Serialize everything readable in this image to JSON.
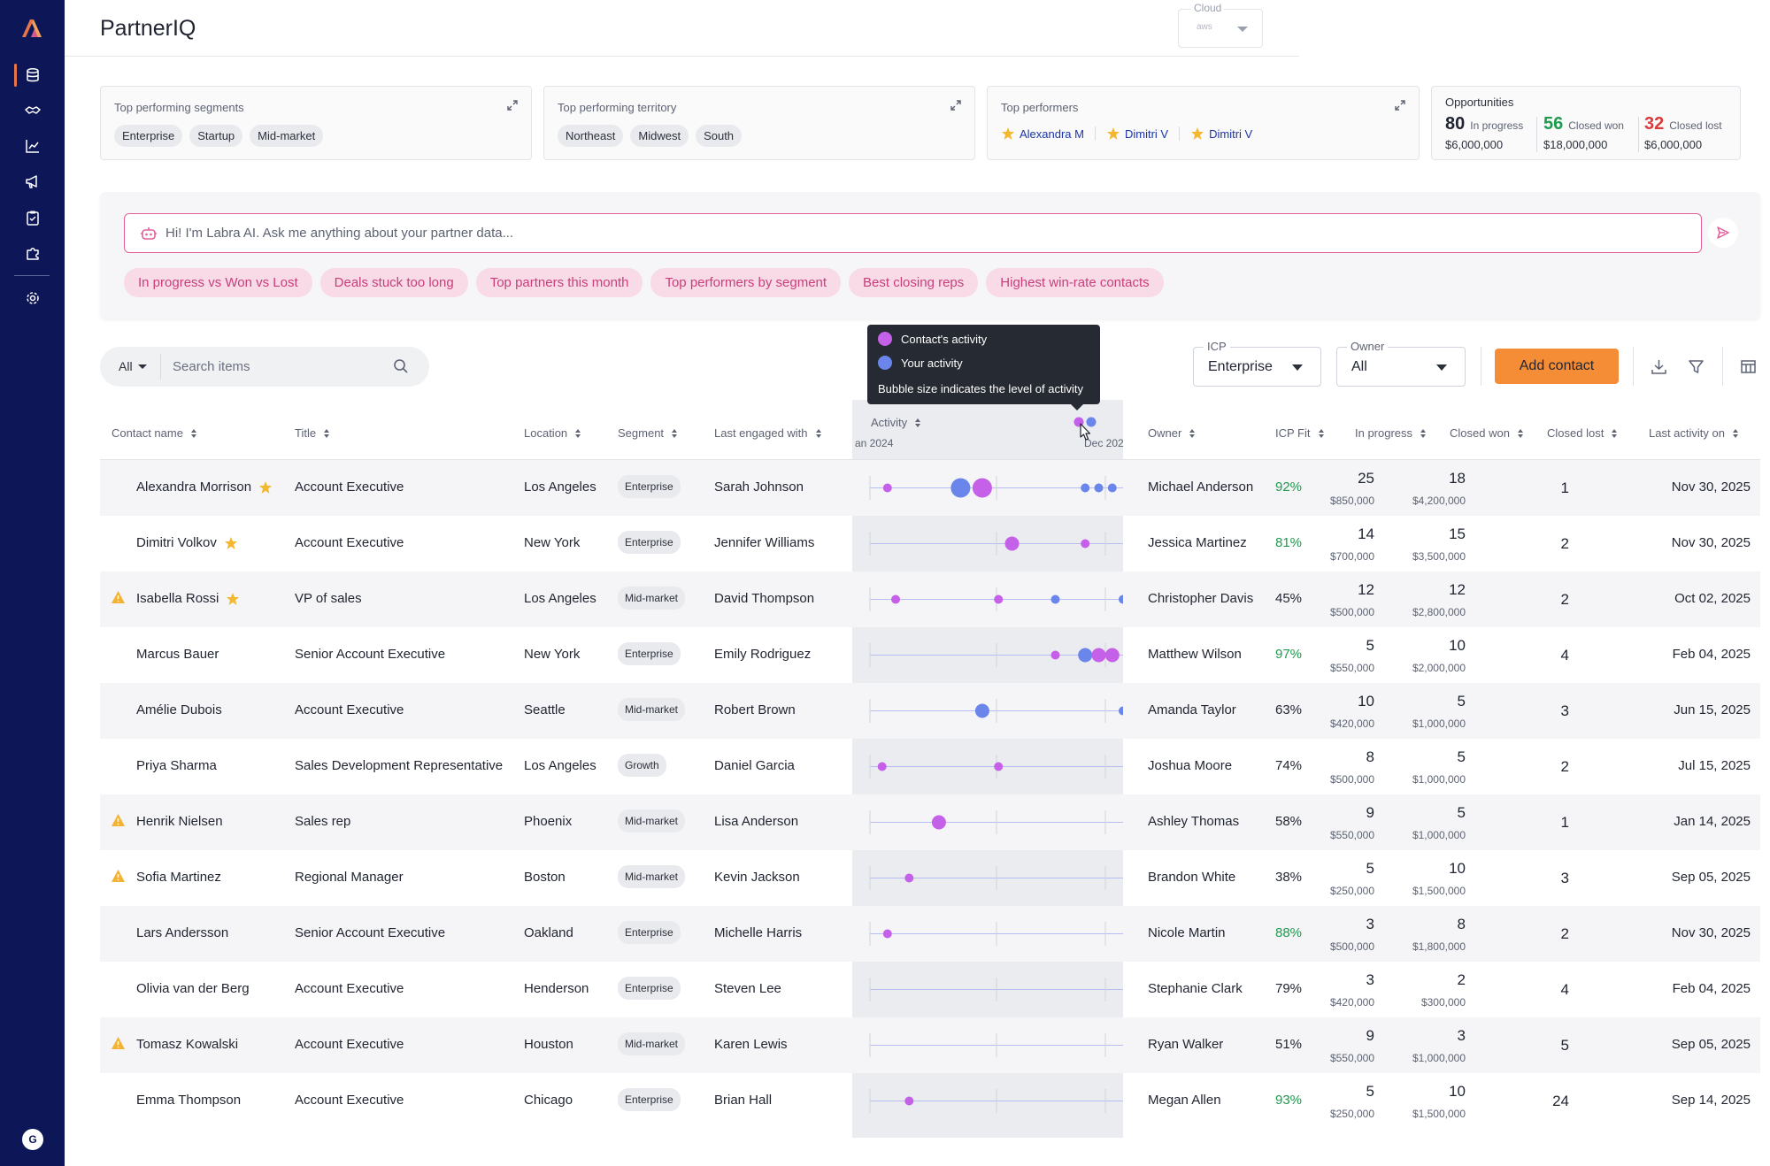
{
  "app": {
    "title": "PartnerIQ"
  },
  "sidebar": {
    "items": [
      {
        "name": "records",
        "icon": "database-icon",
        "active": true
      },
      {
        "name": "partners",
        "icon": "handshake-icon"
      },
      {
        "name": "analytics",
        "icon": "chart-line-icon"
      },
      {
        "name": "campaigns",
        "icon": "megaphone-icon"
      },
      {
        "name": "tasks",
        "icon": "clipboard-icon"
      },
      {
        "name": "integrations",
        "icon": "puzzle-icon"
      },
      {
        "name": "settings",
        "icon": "gear-icon"
      }
    ],
    "avatar_initial": "G"
  },
  "cloud": {
    "label": "Cloud",
    "value": "aws"
  },
  "cards": {
    "segments": {
      "title": "Top performing segments",
      "chips": [
        "Enterprise",
        "Startup",
        "Mid-market"
      ]
    },
    "territory": {
      "title": "Top performing territory",
      "chips": [
        "Northeast",
        "Midwest",
        "South"
      ]
    },
    "performers": {
      "title": "Top performers",
      "names": [
        "Alexandra M",
        "Dimitri V",
        "Dimitri V"
      ]
    },
    "opportunities": {
      "title": "Opportunities",
      "in_progress": {
        "count": "80",
        "label": "In progress",
        "amount": "$6,000,000"
      },
      "closed_won": {
        "count": "56",
        "label": "Closed won",
        "amount": "$18,000,000"
      },
      "closed_lost": {
        "count": "32",
        "label": "Closed lost",
        "amount": "$6,000,000"
      }
    }
  },
  "ai": {
    "placeholder": "Hi! I'm Labra AI. Ask me anything about your partner data...",
    "suggestions": [
      "In progress vs Won vs Lost",
      "Deals stuck too long",
      "Top partners this month",
      "Top performers by segment",
      "Best closing reps",
      "Highest win-rate contacts"
    ]
  },
  "toolbar": {
    "filter_value": "All",
    "search_placeholder": "Search items",
    "icp": {
      "label": "ICP",
      "value": "Enterprise"
    },
    "owner": {
      "label": "Owner",
      "value": "All"
    },
    "add_button": "Add contact"
  },
  "tooltip": {
    "contact_activity": "Contact's activity",
    "your_activity": "Your activity",
    "note": "Bubble size indicates the level of activity"
  },
  "colors": {
    "contact": "#c560e8",
    "yours": "#6a86ea",
    "accent": "#f58c36",
    "brand": "#0d1757"
  },
  "table": {
    "columns": {
      "name": "Contact name",
      "title": "Title",
      "location": "Location",
      "segment": "Segment",
      "engaged": "Last engaged with",
      "activity": "Activity",
      "owner": "Owner",
      "icp_fit": "ICP Fit",
      "in_progress": "In progress",
      "closed_won": "Closed won",
      "closed_lost": "Closed lost",
      "last_activity": "Last activity on"
    },
    "activity_axis": {
      "start": "an 2024",
      "end": "Dec 202"
    },
    "rows": [
      {
        "name": "Alexandra Morrison",
        "star": true,
        "warn": false,
        "title": "Account Executive",
        "location": "Los Angeles",
        "segment": "Enterprise",
        "engaged": "Sarah Johnson",
        "owner": "Michael Anderson",
        "icp": "92%",
        "icp_good": true,
        "in_progress": "25",
        "in_progress_amt": "$850,000",
        "closed_won": "18",
        "closed_won_amt": "$4,200,000",
        "closed_lost": "1",
        "last_activity": "Nov 30, 2025",
        "bubbles": [
          {
            "t": 0.13,
            "s": 1,
            "k": "c"
          },
          {
            "t": 0.4,
            "s": 3,
            "k": "y"
          },
          {
            "t": 0.48,
            "s": 3,
            "k": "c"
          },
          {
            "t": 0.86,
            "s": 1,
            "k": "y"
          },
          {
            "t": 0.91,
            "s": 1,
            "k": "y"
          },
          {
            "t": 0.96,
            "s": 1,
            "k": "y"
          }
        ]
      },
      {
        "name": "Dimitri Volkov",
        "star": true,
        "warn": false,
        "title": "Account Executive",
        "location": "New York",
        "segment": "Enterprise",
        "engaged": "Jennifer Williams",
        "owner": "Jessica Martinez",
        "icp": "81%",
        "icp_good": true,
        "in_progress": "14",
        "in_progress_amt": "$700,000",
        "closed_won": "15",
        "closed_won_amt": "$3,500,000",
        "closed_lost": "2",
        "last_activity": "Nov 30, 2025",
        "bubbles": [
          {
            "t": 0.59,
            "s": 2,
            "k": "c"
          },
          {
            "t": 0.86,
            "s": 1,
            "k": "c"
          }
        ]
      },
      {
        "name": "Isabella Rossi",
        "star": true,
        "warn": true,
        "title": "VP of sales",
        "location": "Los Angeles",
        "segment": "Mid-market",
        "engaged": "David Thompson",
        "owner": "Christopher Davis",
        "icp": "45%",
        "icp_good": false,
        "in_progress": "12",
        "in_progress_amt": "$500,000",
        "closed_won": "12",
        "closed_won_amt": "$2,800,000",
        "closed_lost": "2",
        "last_activity": "Oct 02, 2025",
        "bubbles": [
          {
            "t": 0.16,
            "s": 1,
            "k": "c"
          },
          {
            "t": 0.54,
            "s": 1,
            "k": "c"
          },
          {
            "t": 0.75,
            "s": 1,
            "k": "y"
          },
          {
            "t": 1.0,
            "s": 1,
            "k": "y"
          }
        ]
      },
      {
        "name": "Marcus Bauer",
        "star": false,
        "warn": false,
        "title": "Senior Account Executive",
        "location": "New York",
        "segment": "Enterprise",
        "engaged": "Emily Rodriguez",
        "owner": "Matthew Wilson",
        "icp": "97%",
        "icp_good": true,
        "in_progress": "5",
        "in_progress_amt": "$550,000",
        "closed_won": "10",
        "closed_won_amt": "$2,000,000",
        "closed_lost": "4",
        "last_activity": "Feb 04, 2025",
        "bubbles": [
          {
            "t": 0.75,
            "s": 1,
            "k": "c"
          },
          {
            "t": 0.86,
            "s": 2,
            "k": "y"
          },
          {
            "t": 0.91,
            "s": 2,
            "k": "c"
          },
          {
            "t": 0.96,
            "s": 2,
            "k": "c"
          }
        ]
      },
      {
        "name": "Amélie Dubois",
        "star": false,
        "warn": false,
        "title": "Account Executive",
        "location": "Seattle",
        "segment": "Mid-market",
        "engaged": "Robert Brown",
        "owner": "Amanda Taylor",
        "icp": "63%",
        "icp_good": false,
        "in_progress": "10",
        "in_progress_amt": "$420,000",
        "closed_won": "5",
        "closed_won_amt": "$1,000,000",
        "closed_lost": "3",
        "last_activity": "Jun 15, 2025",
        "bubbles": [
          {
            "t": 0.48,
            "s": 2,
            "k": "y"
          },
          {
            "t": 1.0,
            "s": 1,
            "k": "y"
          }
        ]
      },
      {
        "name": "Priya Sharma",
        "star": false,
        "warn": false,
        "title": "Sales Development Representative",
        "location": "Los Angeles",
        "segment": "Growth",
        "engaged": "Daniel Garcia",
        "owner": "Joshua Moore",
        "icp": "74%",
        "icp_good": false,
        "in_progress": "8",
        "in_progress_amt": "$500,000",
        "closed_won": "5",
        "closed_won_amt": "$1,000,000",
        "closed_lost": "2",
        "last_activity": "Jul 15, 2025",
        "bubbles": [
          {
            "t": 0.11,
            "s": 1,
            "k": "c"
          },
          {
            "t": 0.54,
            "s": 1,
            "k": "c"
          }
        ]
      },
      {
        "name": "Henrik Nielsen",
        "star": false,
        "warn": true,
        "title": "Sales rep",
        "location": "Phoenix",
        "segment": "Mid-market",
        "engaged": "Lisa Anderson",
        "owner": "Ashley Thomas",
        "icp": "58%",
        "icp_good": false,
        "in_progress": "9",
        "in_progress_amt": "$550,000",
        "closed_won": "5",
        "closed_won_amt": "$1,000,000",
        "closed_lost": "1",
        "last_activity": "Jan 14, 2025",
        "bubbles": [
          {
            "t": 0.32,
            "s": 2,
            "k": "c"
          }
        ]
      },
      {
        "name": "Sofia Martinez",
        "star": false,
        "warn": true,
        "title": "Regional Manager",
        "location": "Boston",
        "segment": "Mid-market",
        "engaged": "Kevin Jackson",
        "owner": "Brandon White",
        "icp": "38%",
        "icp_good": false,
        "in_progress": "5",
        "in_progress_amt": "$250,000",
        "closed_won": "10",
        "closed_won_amt": "$1,500,000",
        "closed_lost": "3",
        "last_activity": "Sep 05, 2025",
        "bubbles": [
          {
            "t": 0.21,
            "s": 1,
            "k": "c"
          }
        ]
      },
      {
        "name": "Lars Andersson",
        "star": false,
        "warn": false,
        "title": "Senior Account Executive",
        "location": "Oakland",
        "segment": "Enterprise",
        "engaged": "Michelle Harris",
        "owner": "Nicole Martin",
        "icp": "88%",
        "icp_good": true,
        "in_progress": "3",
        "in_progress_amt": "$500,000",
        "closed_won": "8",
        "closed_won_amt": "$1,800,000",
        "closed_lost": "2",
        "last_activity": "Nov 30, 2025",
        "bubbles": [
          {
            "t": 0.13,
            "s": 1,
            "k": "c"
          }
        ]
      },
      {
        "name": "Olivia van der Berg",
        "star": false,
        "warn": false,
        "title": "Account Executive",
        "location": "Henderson",
        "segment": "Enterprise",
        "engaged": "Steven Lee",
        "owner": "Stephanie Clark",
        "icp": "79%",
        "icp_good": false,
        "in_progress": "3",
        "in_progress_amt": "$420,000",
        "closed_won": "2",
        "closed_won_amt": "$300,000",
        "closed_lost": "4",
        "last_activity": "Feb 04, 2025",
        "bubbles": []
      },
      {
        "name": "Tomasz Kowalski",
        "star": false,
        "warn": true,
        "title": "Account Executive",
        "location": "Houston",
        "segment": "Mid-market",
        "engaged": "Karen Lewis",
        "owner": "Ryan Walker",
        "icp": "51%",
        "icp_good": false,
        "in_progress": "9",
        "in_progress_amt": "$550,000",
        "closed_won": "3",
        "closed_won_amt": "$1,000,000",
        "closed_lost": "5",
        "last_activity": "Sep 05, 2025",
        "bubbles": []
      },
      {
        "name": "Emma Thompson",
        "star": false,
        "warn": false,
        "title": "Account Executive",
        "location": "Chicago",
        "segment": "Enterprise",
        "engaged": "Brian Hall",
        "owner": "Megan Allen",
        "icp": "93%",
        "icp_good": true,
        "in_progress": "5",
        "in_progress_amt": "$250,000",
        "closed_won": "10",
        "closed_won_amt": "$1,500,000",
        "closed_lost": "24",
        "last_activity": "Sep 14, 2025",
        "bubbles": [
          {
            "t": 0.21,
            "s": 1,
            "k": "c"
          }
        ]
      }
    ]
  }
}
